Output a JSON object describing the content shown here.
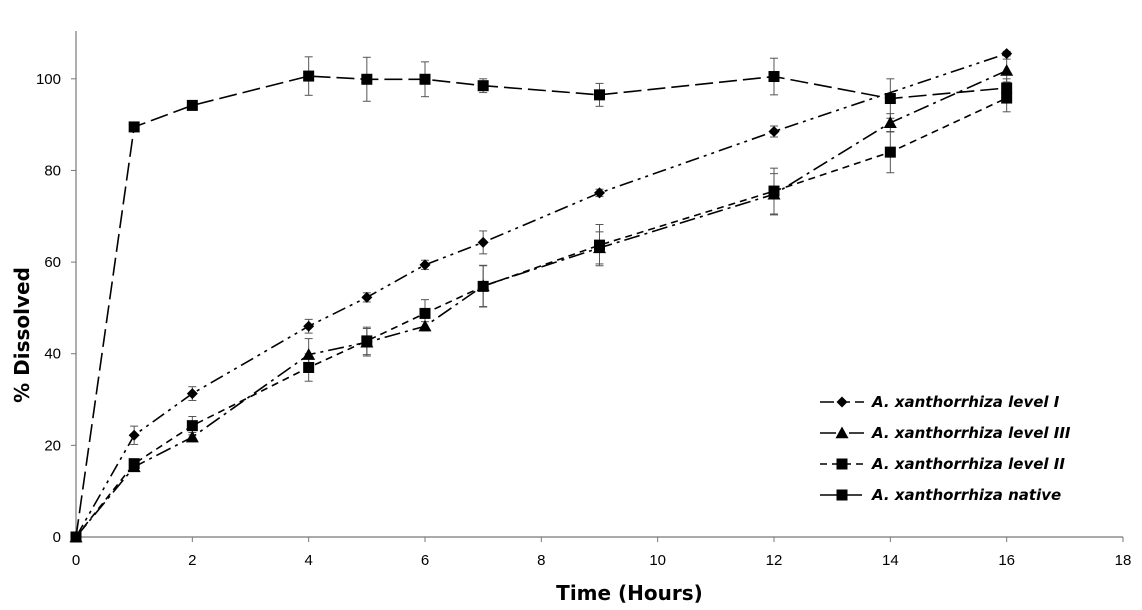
{
  "chart_data": {
    "type": "line",
    "title": "",
    "xlabel": "Time (Hours)",
    "ylabel": "% Dissolved",
    "xlim": [
      0,
      18
    ],
    "ylim": [
      0,
      110
    ],
    "xticks": [
      0,
      2,
      4,
      6,
      8,
      10,
      12,
      14,
      16,
      18
    ],
    "yticks": [
      0,
      20,
      40,
      60,
      80,
      100
    ],
    "grid": false,
    "legend_position": "bottom-right",
    "series": [
      {
        "name": "A. xanthorrhiza level I",
        "marker": "diamond",
        "dash": "dash-dot-dot",
        "color": "#000000",
        "x": [
          0,
          1,
          2,
          4,
          5,
          6,
          7,
          9,
          12,
          16
        ],
        "y": [
          0,
          22.2,
          31.3,
          46.0,
          52.3,
          59.4,
          64.3,
          75.1,
          88.5,
          105.5
        ],
        "err": [
          0,
          2.0,
          1.5,
          1.5,
          1.0,
          1.0,
          2.5,
          0.8,
          1.2,
          0.5
        ]
      },
      {
        "name": "A. xanthorrhiza level III",
        "marker": "triangle",
        "dash": "dash-dot",
        "color": "#000000",
        "x": [
          0,
          1,
          2,
          4,
          5,
          6,
          7,
          9,
          12,
          14,
          16
        ],
        "y": [
          0,
          15.3,
          21.8,
          39.8,
          42.5,
          46.0,
          54.8,
          63.1,
          74.8,
          90.4,
          101.8
        ],
        "err": [
          0,
          1.0,
          1.0,
          3.5,
          3.0,
          1.0,
          4.5,
          3.5,
          4.5,
          2.0,
          2.5
        ]
      },
      {
        "name": "A. xanthorrhiza level II",
        "marker": "square",
        "dash": "short-dash",
        "color": "#000000",
        "x": [
          0,
          1,
          2,
          4,
          5,
          6,
          7,
          9,
          12,
          14,
          16
        ],
        "y": [
          0,
          16.0,
          24.3,
          37.0,
          42.8,
          48.8,
          54.7,
          63.7,
          75.5,
          84.0,
          95.8
        ],
        "err": [
          0,
          1.0,
          2.0,
          3.0,
          3.0,
          3.0,
          4.5,
          4.5,
          5.0,
          4.5,
          3.0
        ]
      },
      {
        "name": "A. xanthorrhiza native",
        "marker": "square",
        "dash": "long-dash",
        "color": "#000000",
        "x": [
          0,
          1,
          2,
          4,
          5,
          6,
          7,
          9,
          12,
          14,
          16
        ],
        "y": [
          0,
          89.5,
          94.2,
          100.6,
          99.9,
          99.9,
          98.5,
          96.5,
          100.5,
          95.7,
          98.0
        ],
        "err": [
          0,
          0,
          0,
          4.2,
          4.8,
          3.8,
          1.5,
          2.5,
          4.0,
          4.3,
          2.0
        ]
      }
    ]
  }
}
